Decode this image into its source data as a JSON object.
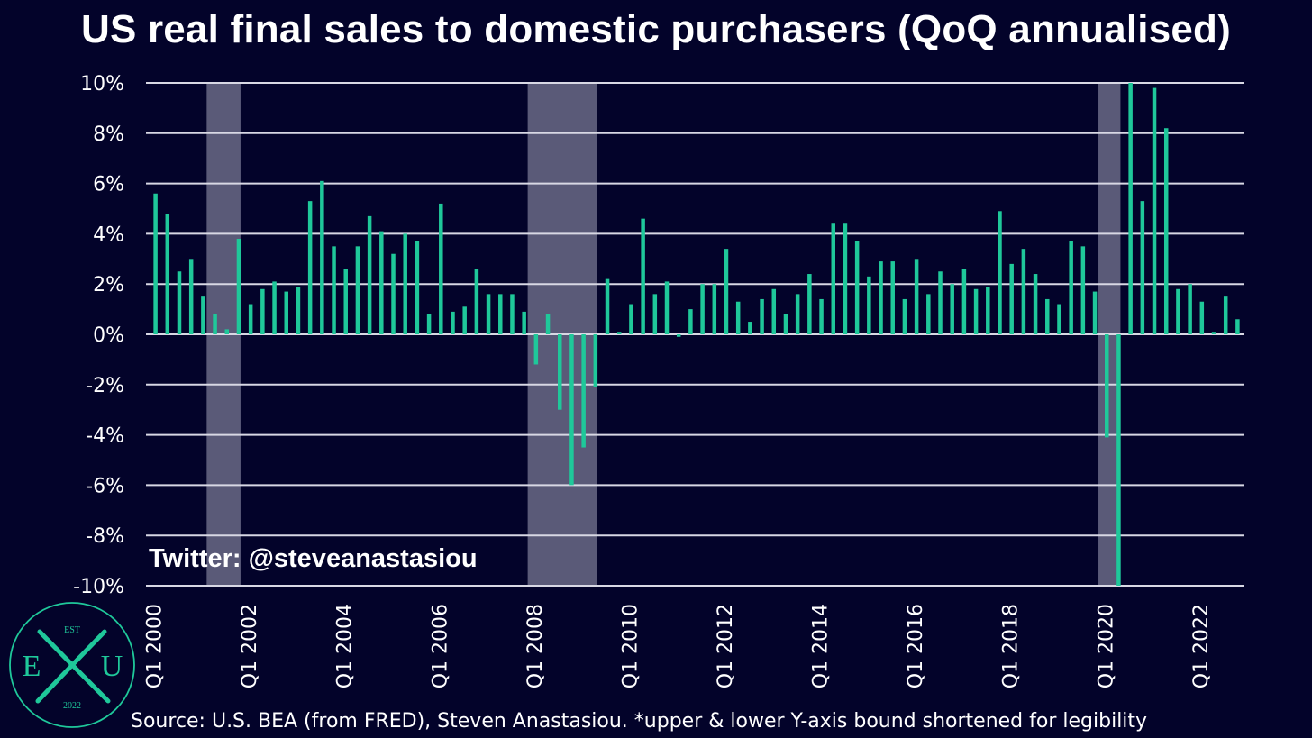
{
  "title": "US real final sales to domestic purchasers (QoQ annualised)",
  "watermark": "Twitter: @steveanastasiou",
  "source": "Source: U.S. BEA (from FRED), Steven Anastasiou. *upper & lower Y-axis bound shortened for legibility",
  "logo": {
    "left": "E",
    "right": "U",
    "top": "EST",
    "bottom": "2022",
    "color": "#1fc89a",
    "icon": "crossed-x-logo"
  },
  "colors": {
    "background": "#03032a",
    "bar": "#1fc89a",
    "recession": "#5a5a78",
    "grid": "#d8d8e4"
  },
  "chart_data": {
    "type": "bar",
    "title": "US real final sales to domestic purchasers (QoQ annualised)",
    "ylim": [
      -10,
      10
    ],
    "yticks": [
      "10%",
      "8%",
      "6%",
      "4%",
      "2%",
      "0%",
      "-2%",
      "-4%",
      "-6%",
      "-8%",
      "-10%"
    ],
    "ytick_values": [
      10,
      8,
      6,
      4,
      2,
      0,
      -2,
      -4,
      -6,
      -8,
      -10
    ],
    "xtick_labels": [
      "Q1 2000",
      "Q1 2002",
      "Q1 2004",
      "Q1 2006",
      "Q1 2008",
      "Q1 2010",
      "Q1 2012",
      "Q1 2014",
      "Q1 2016",
      "Q1 2018",
      "Q1 2020",
      "Q1 2022"
    ],
    "categories": [
      "Q1 2000",
      "Q2 2000",
      "Q3 2000",
      "Q4 2000",
      "Q1 2001",
      "Q2 2001",
      "Q3 2001",
      "Q4 2001",
      "Q1 2002",
      "Q2 2002",
      "Q3 2002",
      "Q4 2002",
      "Q1 2003",
      "Q2 2003",
      "Q3 2003",
      "Q4 2003",
      "Q1 2004",
      "Q2 2004",
      "Q3 2004",
      "Q4 2004",
      "Q1 2005",
      "Q2 2005",
      "Q3 2005",
      "Q4 2005",
      "Q1 2006",
      "Q2 2006",
      "Q3 2006",
      "Q4 2006",
      "Q1 2007",
      "Q2 2007",
      "Q3 2007",
      "Q4 2007",
      "Q1 2008",
      "Q2 2008",
      "Q3 2008",
      "Q4 2008",
      "Q1 2009",
      "Q2 2009",
      "Q3 2009",
      "Q4 2009",
      "Q1 2010",
      "Q2 2010",
      "Q3 2010",
      "Q4 2010",
      "Q1 2011",
      "Q2 2011",
      "Q3 2011",
      "Q4 2011",
      "Q1 2012",
      "Q2 2012",
      "Q3 2012",
      "Q4 2012",
      "Q1 2013",
      "Q2 2013",
      "Q3 2013",
      "Q4 2013",
      "Q1 2014",
      "Q2 2014",
      "Q3 2014",
      "Q4 2014",
      "Q1 2015",
      "Q2 2015",
      "Q3 2015",
      "Q4 2015",
      "Q1 2016",
      "Q2 2016",
      "Q3 2016",
      "Q4 2016",
      "Q1 2017",
      "Q2 2017",
      "Q3 2017",
      "Q4 2017",
      "Q1 2018",
      "Q2 2018",
      "Q3 2018",
      "Q4 2018",
      "Q1 2019",
      "Q2 2019",
      "Q3 2019",
      "Q4 2019",
      "Q1 2020",
      "Q2 2020",
      "Q3 2020",
      "Q4 2020",
      "Q1 2021",
      "Q2 2021",
      "Q3 2021",
      "Q4 2021",
      "Q1 2022",
      "Q2 2022",
      "Q3 2022",
      "Q4 2022"
    ],
    "values": [
      5.6,
      4.8,
      2.5,
      3.0,
      1.5,
      0.8,
      0.2,
      3.8,
      1.2,
      1.8,
      2.1,
      1.7,
      1.9,
      5.3,
      6.1,
      3.5,
      2.6,
      3.5,
      4.7,
      4.1,
      3.2,
      4.0,
      3.7,
      0.8,
      5.2,
      0.9,
      1.1,
      2.6,
      1.6,
      1.6,
      1.6,
      0.9,
      -1.2,
      0.8,
      -3.0,
      -6.0,
      -4.5,
      -2.1,
      2.2,
      0.1,
      1.2,
      4.6,
      1.6,
      2.1,
      -0.1,
      1.0,
      2.0,
      2.0,
      3.4,
      1.3,
      0.5,
      1.4,
      1.8,
      0.8,
      1.6,
      2.4,
      1.4,
      4.4,
      4.4,
      3.7,
      2.3,
      2.9,
      2.9,
      1.4,
      3.0,
      1.6,
      2.5,
      2.0,
      2.6,
      1.8,
      1.9,
      4.9,
      2.8,
      3.4,
      2.4,
      1.4,
      1.2,
      3.7,
      3.5,
      1.7,
      -4.1,
      -10.0,
      10.0,
      5.3,
      9.8,
      8.2,
      1.8,
      2.0,
      1.3,
      0.1,
      1.5,
      0.6
    ],
    "recession_shading": [
      {
        "start": "Q2 2001",
        "end": "Q4 2001"
      },
      {
        "start": "Q1 2008",
        "end": "Q2 2009"
      },
      {
        "start": "Q1 2020",
        "end": "Q2 2020"
      }
    ],
    "grid": true,
    "legend": false
  }
}
